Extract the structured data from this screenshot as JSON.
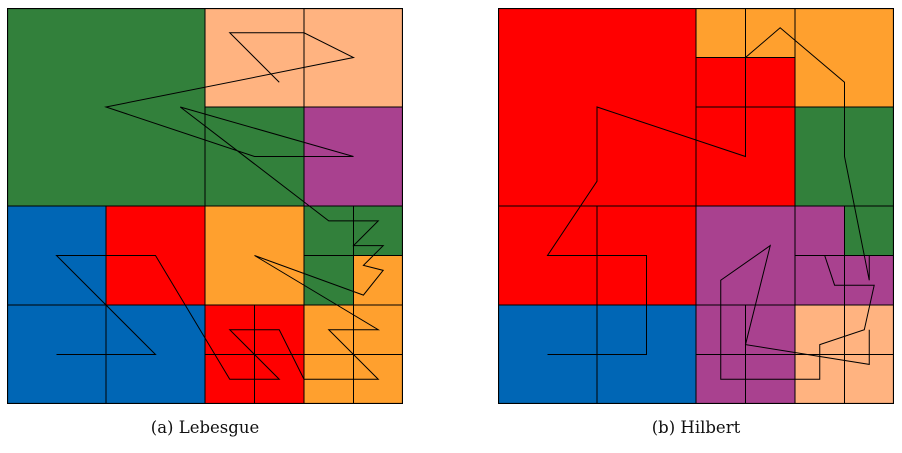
{
  "colors": {
    "red": "#ff0000",
    "green": "#32803b",
    "blue": "#0066b5",
    "orange": "#ffa02e",
    "peach": "#ffb380",
    "purple": "#a9418f"
  },
  "panels": [
    {
      "caption": "(a) Lebesgue",
      "order": "lebesgue",
      "cells": [
        [
          "green",
          "green",
          "peach",
          "peach"
        ],
        [
          "green",
          "green",
          "purple",
          "purple"
        ],
        [
          "green",
          "green",
          "green",
          "purple"
        ],
        [
          "green",
          "green",
          "green",
          "purple"
        ],
        [
          "blue",
          "red",
          "orange",
          "green"
        ],
        [
          "blue",
          "red",
          "orange",
          "green"
        ],
        [
          "blue",
          "blue",
          "red",
          "orange"
        ],
        [
          "blue",
          "blue",
          "red",
          "orange"
        ]
      ],
      "extra": [
        {
          "i": 4,
          "j": 7,
          "color": "green"
        },
        {
          "i": 5,
          "j": 7,
          "color": "orange"
        },
        {
          "i": 6,
          "j": 7,
          "color": "orange"
        },
        {
          "i": 7,
          "j": 7,
          "color": "orange"
        },
        {
          "i": 6,
          "j": 5,
          "color": "red"
        }
      ]
    },
    {
      "caption": "(b) Hilbert",
      "order": "hilbert",
      "cells": [
        [
          "red",
          "red",
          "orange",
          "orange"
        ],
        [
          "red",
          "red",
          "red",
          "orange"
        ],
        [
          "red",
          "red",
          "red",
          "green"
        ],
        [
          "red",
          "red",
          "red",
          "green"
        ],
        [
          "red",
          "red",
          "purple",
          "purple"
        ],
        [
          "red",
          "red",
          "purple",
          "purple"
        ],
        [
          "blue",
          "blue",
          "purple",
          "peach"
        ],
        [
          "blue",
          "blue",
          "purple",
          "peach"
        ]
      ],
      "extra": [
        {
          "i": 4,
          "j": 7,
          "color": "green"
        },
        {
          "i": 5,
          "j": 7,
          "color": "purple"
        },
        {
          "i": 6,
          "j": 7,
          "color": "peach"
        },
        {
          "i": 7,
          "j": 7,
          "color": "peach"
        }
      ]
    }
  ]
}
